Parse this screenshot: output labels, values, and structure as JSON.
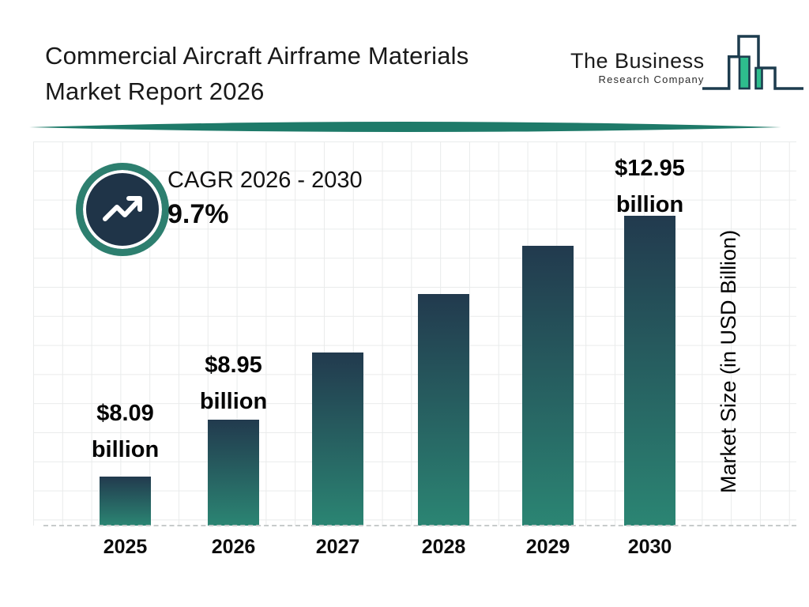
{
  "header": {
    "title": "Commercial Aircraft Airframe Materials Market Report 2026"
  },
  "brand": {
    "line1": "The Business",
    "line2": "Research Company",
    "icon": "bar-chart-skyline-logo"
  },
  "badge": {
    "icon": "trending-up-icon",
    "label": "CAGR 2026 - 2030",
    "value": "9.7%"
  },
  "chart_data": {
    "type": "bar",
    "title": "Commercial Aircraft Airframe Materials Market Report 2026",
    "categories": [
      "2025",
      "2026",
      "2027",
      "2028",
      "2029",
      "2030"
    ],
    "series": [
      {
        "name": "Market Size (in USD Billion)",
        "values": [
          8.09,
          8.95,
          9.82,
          10.77,
          11.82,
          12.95
        ]
      }
    ],
    "value_labels": [
      "$8.09 billion",
      "$8.95 billion",
      "",
      "",
      "",
      "$12.95 billion"
    ],
    "labeled_points": [
      true,
      true,
      false,
      false,
      false,
      true
    ],
    "xlabel": "",
    "ylabel": "Market Size (in USD Billion)",
    "grid": true,
    "baseline_style": "dashed",
    "legend_position": "none",
    "cagr": {
      "label": "CAGR 2026 - 2030",
      "value_pct": 9.7
    },
    "colors": {
      "bar_gradient_top": "#223a4e",
      "bar_gradient_bottom": "#2b8573",
      "divider_teal": "#1e7a69",
      "badge_ring_teal": "#2d7f6f",
      "badge_fill_navy": "#1f3448",
      "logo_green": "#2ebd8d",
      "logo_outline": "#1d3c4e",
      "gridline": "#e9ebeb",
      "text": "#0c0c0c"
    }
  }
}
